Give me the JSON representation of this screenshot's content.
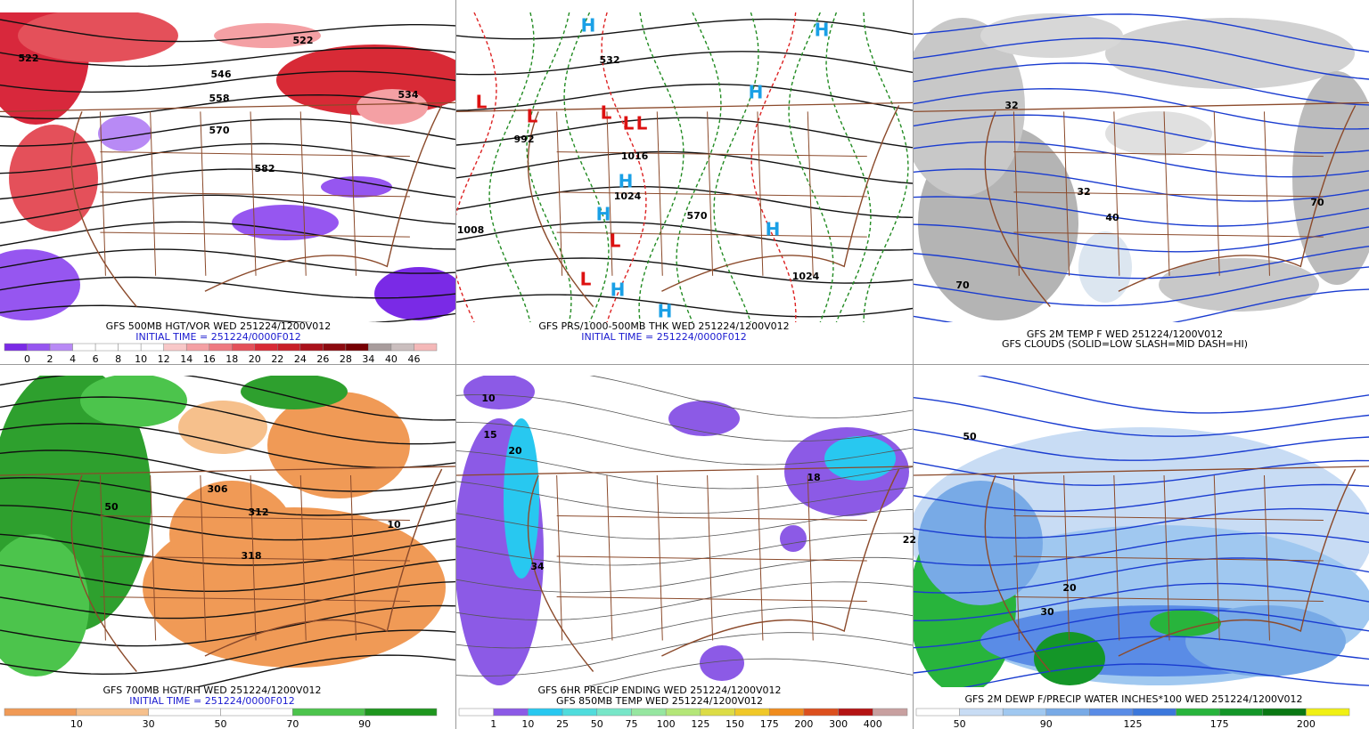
{
  "panels": [
    {
      "caption": [
        "GFS 500MB HGT/VOR WED 251224/1200V012",
        "INITIAL TIME = 251224/0000F012"
      ],
      "colorbar": {
        "colors": [
          "#7a2ae6",
          "#9656f0",
          "#b88af5",
          "#ffffff",
          "#ffffff",
          "#ffffff",
          "#ffffff",
          "#f8c8c8",
          "#f4a0a4",
          "#ee7880",
          "#e4505a",
          "#d82a36",
          "#c81e28",
          "#aa121c",
          "#8c0a10",
          "#760004",
          "#a89c9c",
          "#cabebe",
          "#f4b8b8"
        ],
        "labels": [
          "0",
          "2",
          "4",
          "6",
          "8",
          "10",
          "12",
          "14",
          "16",
          "18",
          "20",
          "22",
          "24",
          "26",
          "28",
          "34",
          "40",
          "46"
        ]
      },
      "labels": [
        "522",
        "546",
        "558",
        "570",
        "582",
        "534",
        "522"
      ]
    },
    {
      "caption": [
        "GFS PRS/1000-500MB THK WED 251224/1200V012",
        "INITIAL TIME = 251224/0000F012"
      ],
      "labels": [
        "L",
        "L",
        "L",
        "L",
        "L",
        "L",
        "L",
        "H",
        "H",
        "H",
        "H",
        "H",
        "H",
        "H",
        "H",
        "1016",
        "1024",
        "1008",
        "1024",
        "992",
        "570",
        "532"
      ]
    },
    {
      "caption": [
        "GFS 2M TEMP F WED 251224/1200V012",
        "GFS CLOUDS (SOLID=LOW SLASH=MID DASH=HI)"
      ],
      "labels": [
        "32",
        "70",
        "40",
        "70",
        "32"
      ]
    },
    {
      "caption": [
        "GFS 700MB HGT/RH WED 251224/1200V012",
        "INITIAL TIME = 251224/0000F012"
      ],
      "colorbar": {
        "colors": [
          "#f09a56",
          "#f6c08c",
          "#ffffff",
          "#ffffff",
          "#4cc44c",
          "#1e961e"
        ],
        "labels": [
          "10",
          "30",
          "50",
          "70",
          "90"
        ]
      },
      "labels": [
        "312",
        "318",
        "306",
        "10",
        "50"
      ]
    },
    {
      "caption": [
        "GFS 6HR PRECIP ENDING WED 251224/1200V012",
        "GFS 850MB TEMP WED 251224/1200V012"
      ],
      "colorbar": {
        "colors": [
          "#ffffff",
          "#8c5ae6",
          "#28c8f0",
          "#50dcdc",
          "#78e6c8",
          "#96e6a0",
          "#b4e678",
          "#dcdc46",
          "#f0c828",
          "#f08c1e",
          "#dc501e",
          "#b41414",
          "#c8a0a0"
        ],
        "labels": [
          "1",
          "10",
          "25",
          "50",
          "75",
          "100",
          "125",
          "150",
          "175",
          "200",
          "300",
          "400"
        ]
      },
      "labels": [
        "10",
        "15",
        "20",
        "34",
        "22",
        "18"
      ]
    },
    {
      "caption": [
        "GFS 2M DEWP F/PRECIP WATER INCHES*100 WED 251224/1200V012"
      ],
      "colorbar": {
        "colors": [
          "#ffffff",
          "#c8dcf4",
          "#a0c8f0",
          "#78aae6",
          "#5a8ce6",
          "#3c78dc",
          "#28b43c",
          "#149628",
          "#0a7814",
          "#f0f014"
        ],
        "labels": [
          "50",
          null,
          "90",
          null,
          "125",
          null,
          "175",
          null,
          "200"
        ]
      },
      "labels": [
        "50",
        "30",
        "20"
      ]
    }
  ]
}
